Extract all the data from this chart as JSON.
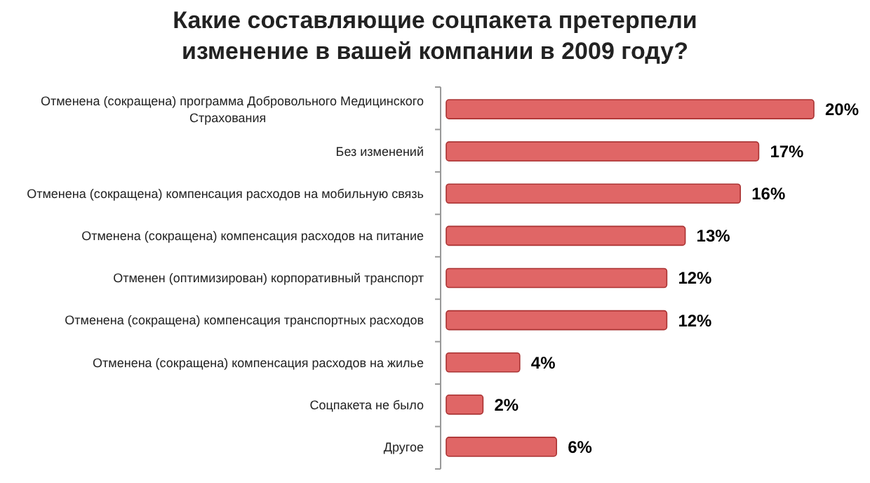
{
  "chart_data": {
    "type": "bar",
    "orientation": "horizontal",
    "title": "Какие составляющие соцпакета претерпели изменение в вашей компании в 2009 году?",
    "categories": [
      "Отменена (сокращена) программа Добровольного Медицинского Страхования",
      "Без изменений",
      "Отменена (сокращена) компенсация расходов на мобильную связь",
      "Отменена (сокращена) компенсация расходов на питание",
      "Отменен (оптимизирован) корпоративный транспорт",
      "Отменена (сокращена) компенсация транспортных расходов",
      "Отменена (сокращена) компенсация расходов на жилье",
      "Соцпакета не было",
      "Другое"
    ],
    "values": [
      20,
      17,
      16,
      13,
      12,
      12,
      4,
      2,
      6
    ],
    "value_labels": [
      "20%",
      "17%",
      "16%",
      "13%",
      "12%",
      "12%",
      "4%",
      "2%",
      "6%"
    ],
    "color": "#e06666"
  }
}
